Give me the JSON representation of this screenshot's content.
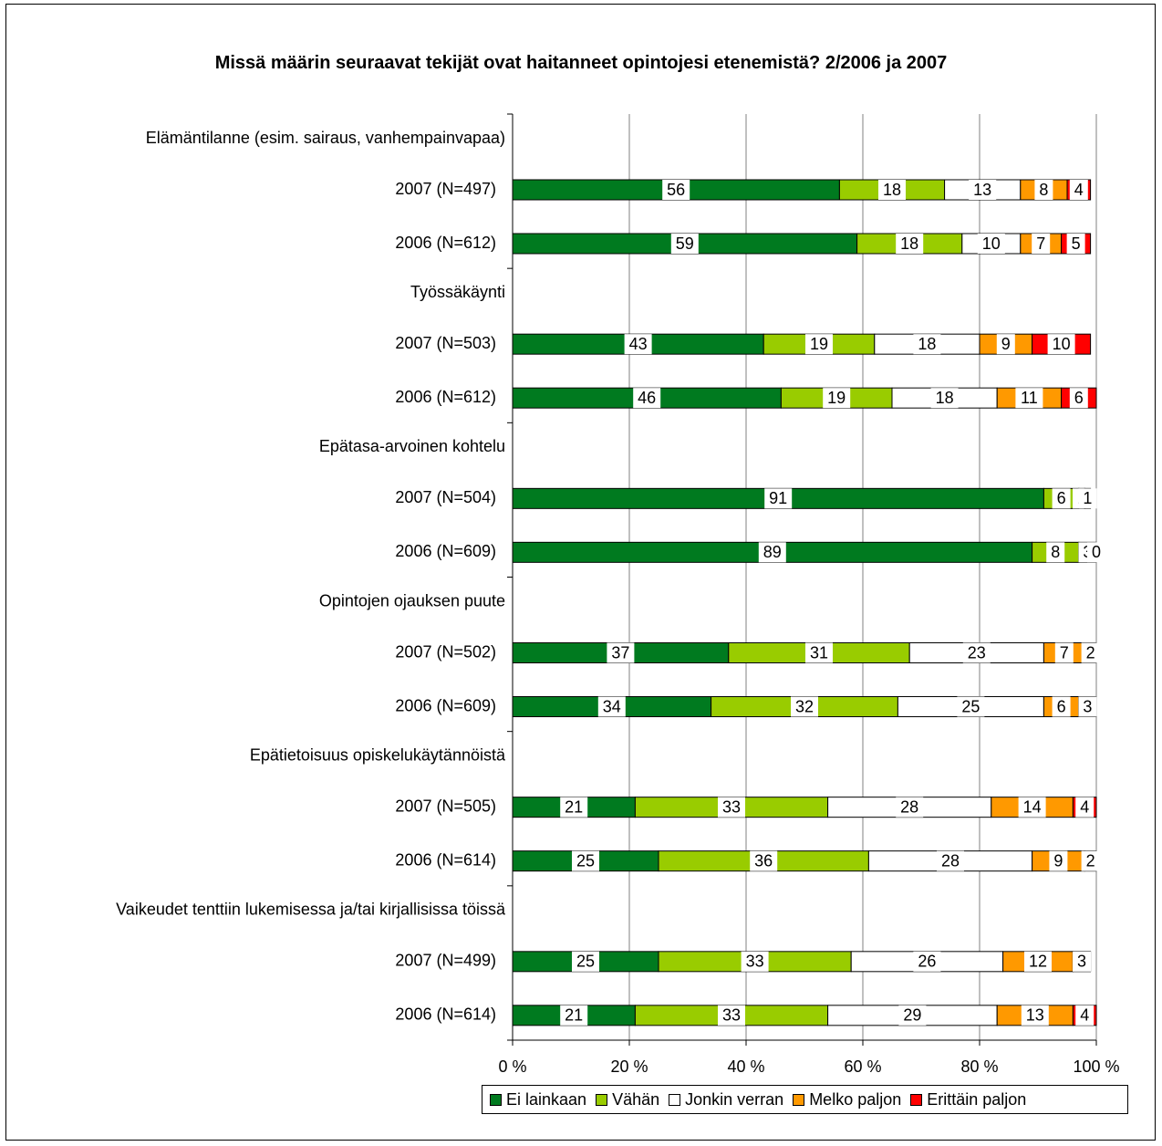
{
  "chart_data": {
    "type": "bar",
    "orientation": "horizontal",
    "stacked": "percent",
    "title": "Missä määrin seuraavat tekijät ovat haitanneet opintojesi etenemistä? 2/2006 ja 2007",
    "xlim": [
      0,
      100
    ],
    "x_ticks": [
      "0 %",
      "20 %",
      "40 %",
      "60 %",
      "80 %",
      "100 %"
    ],
    "grid": "vertical",
    "legend_position": "bottom",
    "series": [
      {
        "name": "Ei lainkaan",
        "color": "#007a1f"
      },
      {
        "name": "Vähän",
        "color": "#99cc00"
      },
      {
        "name": "Jonkin verran",
        "color": "#ffffff"
      },
      {
        "name": "Melko paljon",
        "color": "#ff9900"
      },
      {
        "name": "Erittäin paljon",
        "color": "#ff0000"
      }
    ],
    "groups": [
      {
        "label": "Elämäntilanne (esim. sairaus, vanhempainvapaa)",
        "rows": [
          {
            "label": "2007 (N=497)",
            "values": [
              56,
              18,
              13,
              8,
              4
            ],
            "data_labels": [
              "56",
              "18",
              "13",
              "8",
              "4"
            ]
          },
          {
            "label": "2006 (N=612)",
            "values": [
              59,
              18,
              10,
              7,
              5
            ],
            "data_labels": [
              "59",
              "18",
              "10",
              "7",
              "5"
            ]
          }
        ]
      },
      {
        "label": "Työssäkäynti",
        "rows": [
          {
            "label": "2007 (N=503)",
            "values": [
              43,
              19,
              18,
              9,
              10
            ],
            "data_labels": [
              "43",
              "19",
              "18",
              "9",
              "10"
            ]
          },
          {
            "label": "2006 (N=612)",
            "values": [
              46,
              19,
              18,
              11,
              6
            ],
            "data_labels": [
              "46",
              "19",
              "18",
              "11",
              "6"
            ]
          }
        ]
      },
      {
        "label": "Epätasa-arvoinen kohtelu",
        "rows": [
          {
            "label": "2007 (N=504)",
            "values": [
              91,
              6,
              1,
              1,
              0
            ],
            "data_labels": [
              "91",
              "6",
              "1",
              "1",
              ""
            ]
          },
          {
            "label": "2006 (N=609)",
            "values": [
              89,
              8,
              3,
              0,
              0
            ],
            "data_labels": [
              "89",
              "8",
              "3",
              "0",
              ""
            ]
          }
        ]
      },
      {
        "label": "Opintojen ojauksen puute",
        "rows": [
          {
            "label": "2007 (N=502)",
            "values": [
              37,
              31,
              23,
              7,
              2
            ],
            "data_labels": [
              "37",
              "31",
              "23",
              "7",
              "2"
            ]
          },
          {
            "label": "2006 (N=609)",
            "values": [
              34,
              32,
              25,
              6,
              3
            ],
            "data_labels": [
              "34",
              "32",
              "25",
              "6",
              "3"
            ]
          }
        ]
      },
      {
        "label": "Epätietoisuus opiskelukäytännöistä",
        "rows": [
          {
            "label": "2007 (N=505)",
            "values": [
              21,
              33,
              28,
              14,
              4
            ],
            "data_labels": [
              "21",
              "33",
              "28",
              "14",
              "4"
            ]
          },
          {
            "label": "2006 (N=614)",
            "values": [
              25,
              36,
              28,
              9,
              2
            ],
            "data_labels": [
              "25",
              "36",
              "28",
              "9",
              "2"
            ]
          }
        ]
      },
      {
        "label": "Vaikeudet tenttiin lukemisessa ja/tai kirjallisissa töissä",
        "rows": [
          {
            "label": "2007 (N=499)",
            "values": [
              25,
              33,
              26,
              12,
              3
            ],
            "data_labels": [
              "25",
              "33",
              "26",
              "12",
              "3"
            ]
          },
          {
            "label": "2006 (N=614)",
            "values": [
              21,
              33,
              29,
              13,
              4
            ],
            "data_labels": [
              "21",
              "33",
              "29",
              "13",
              "4"
            ]
          }
        ]
      }
    ]
  }
}
